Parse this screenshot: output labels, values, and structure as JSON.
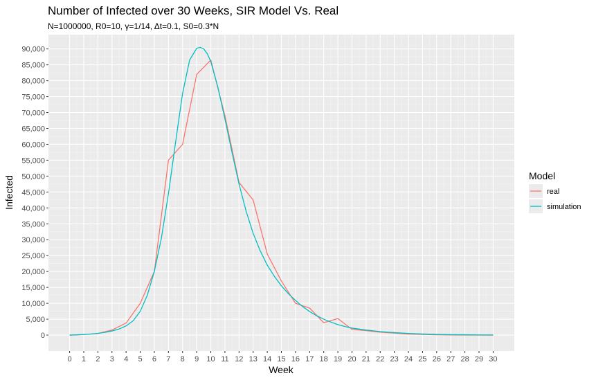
{
  "chart_data": {
    "type": "line",
    "title": "Number of Infected over 30 Weeks, SIR Model Vs. Real",
    "subtitle": "N=1000000, R0=10, γ=1/14, Δt=0.1, S0=0.3*N",
    "xlabel": "Week",
    "ylabel": "Infected",
    "xlim": [
      -1.5,
      31.5
    ],
    "ylim": [
      -5000,
      94500
    ],
    "x_ticks": [
      0,
      1,
      2,
      3,
      4,
      5,
      6,
      7,
      8,
      9,
      10,
      11,
      12,
      13,
      14,
      15,
      16,
      17,
      18,
      19,
      20,
      21,
      22,
      23,
      24,
      25,
      26,
      27,
      28,
      29,
      30
    ],
    "y_ticks": [
      0,
      5000,
      10000,
      15000,
      20000,
      25000,
      30000,
      35000,
      40000,
      45000,
      50000,
      55000,
      60000,
      65000,
      70000,
      75000,
      80000,
      85000,
      90000
    ],
    "y_tick_labels": [
      "0",
      "5,000",
      "10,000",
      "15,000",
      "20,000",
      "25,000",
      "30,000",
      "35,000",
      "40,000",
      "45,000",
      "50,000",
      "55,000",
      "60,000",
      "65,000",
      "70,000",
      "75,000",
      "80,000",
      "85,000",
      "90,000"
    ],
    "grid": true,
    "legend": {
      "title": "Model",
      "position": "right"
    },
    "series": [
      {
        "name": "real",
        "color": "#F8766D",
        "x": [
          0,
          1,
          2,
          3,
          4,
          5,
          6,
          7,
          8,
          9,
          10,
          11,
          12,
          13,
          14,
          15,
          16,
          17,
          18,
          19,
          20,
          21,
          22,
          23,
          24,
          25,
          26,
          27,
          28,
          29,
          30
        ],
        "y": [
          0,
          200,
          500,
          1600,
          3800,
          10000,
          20000,
          55000,
          60000,
          82000,
          86500,
          69000,
          48000,
          42500,
          25500,
          17000,
          10000,
          8500,
          3900,
          5200,
          1800,
          1400,
          900,
          600,
          300,
          200,
          100,
          50,
          20,
          10,
          0
        ]
      },
      {
        "name": "simulation",
        "color": "#00BFC4",
        "x": [
          0,
          0.5,
          1,
          1.5,
          2,
          2.5,
          3,
          3.5,
          4,
          4.5,
          5,
          5.5,
          6,
          6.5,
          7,
          7.5,
          8,
          8.5,
          9,
          9.25,
          9.5,
          9.75,
          10,
          10.5,
          11,
          11.5,
          12,
          12.5,
          13,
          13.5,
          14,
          14.5,
          15,
          15.5,
          16,
          16.5,
          17,
          17.5,
          18,
          18.5,
          19,
          19.5,
          20,
          21,
          22,
          23,
          24,
          25,
          26,
          27,
          28,
          29,
          30
        ],
        "y": [
          0,
          80,
          180,
          330,
          550,
          850,
          1300,
          1900,
          2900,
          4500,
          7500,
          12500,
          20000,
          30500,
          44500,
          60500,
          76000,
          86500,
          90200,
          90500,
          90000,
          88500,
          86000,
          78000,
          68000,
          57500,
          47500,
          39000,
          32000,
          26500,
          22000,
          18500,
          15500,
          13000,
          10900,
          9000,
          7400,
          6100,
          5000,
          4100,
          3300,
          2700,
          2200,
          1600,
          1100,
          780,
          520,
          350,
          240,
          160,
          100,
          60,
          30
        ]
      }
    ]
  }
}
